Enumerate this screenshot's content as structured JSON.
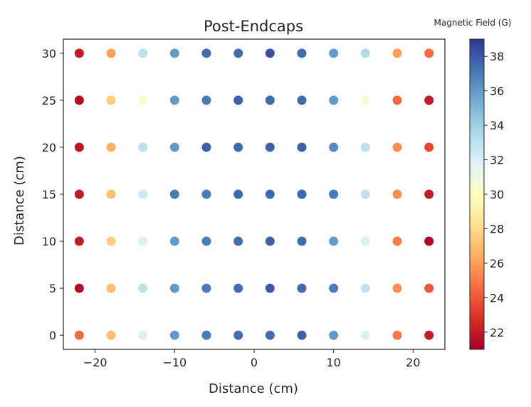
{
  "chart_data": {
    "type": "scatter",
    "title": "Post-Endcaps",
    "xlabel": "Distance (cm)",
    "ylabel": "Distance (cm)",
    "xlim": [
      -24,
      24
    ],
    "ylim": [
      -1.5,
      31.5
    ],
    "x_ticks": [
      -20,
      -10,
      0,
      10,
      20
    ],
    "x_tick_labels": [
      "−20",
      "−10",
      "0",
      "10",
      "20"
    ],
    "y_ticks": [
      0,
      5,
      10,
      15,
      20,
      25,
      30
    ],
    "y_tick_labels": [
      "0",
      "5",
      "10",
      "15",
      "20",
      "25",
      "30"
    ],
    "grid": false,
    "colorbar": {
      "label": "Magnetic Field (G)",
      "range": [
        21,
        39
      ],
      "ticks": [
        22,
        24,
        26,
        28,
        30,
        32,
        34,
        36,
        38
      ],
      "tick_labels": [
        "22",
        "24",
        "26",
        "28",
        "30",
        "32",
        "34",
        "36",
        "38"
      ],
      "colormap": "RdYlBu"
    },
    "x": [
      -22,
      -18,
      -14,
      -10,
      -6,
      -2,
      2,
      6,
      10,
      14,
      18,
      22
    ],
    "y": [
      0,
      5,
      10,
      15,
      20,
      25,
      30
    ],
    "values": [
      [
        24.5,
        27.0,
        32.0,
        36.0,
        37.0,
        37.5,
        37.5,
        37.8,
        36.0,
        32.0,
        25.0,
        22.0
      ],
      [
        21.5,
        27.0,
        33.0,
        36.0,
        37.0,
        37.5,
        38.0,
        37.5,
        37.0,
        33.0,
        25.5,
        24.0
      ],
      [
        22.0,
        27.5,
        32.0,
        36.0,
        37.0,
        37.5,
        37.8,
        37.5,
        36.0,
        32.0,
        25.0,
        21.3
      ],
      [
        22.0,
        27.0,
        32.5,
        37.0,
        37.0,
        37.5,
        37.5,
        37.5,
        37.0,
        33.0,
        25.5,
        22.0
      ],
      [
        21.8,
        26.5,
        33.0,
        36.0,
        37.8,
        37.5,
        37.8,
        37.8,
        36.5,
        33.0,
        25.5,
        23.5
      ],
      [
        21.5,
        27.5,
        30.5,
        36.0,
        37.0,
        37.8,
        37.5,
        37.5,
        36.0,
        30.5,
        24.5,
        22.0
      ],
      [
        22.0,
        26.0,
        33.0,
        36.0,
        37.5,
        37.5,
        38.3,
        37.5,
        36.0,
        33.5,
        26.0,
        24.5
      ]
    ]
  }
}
